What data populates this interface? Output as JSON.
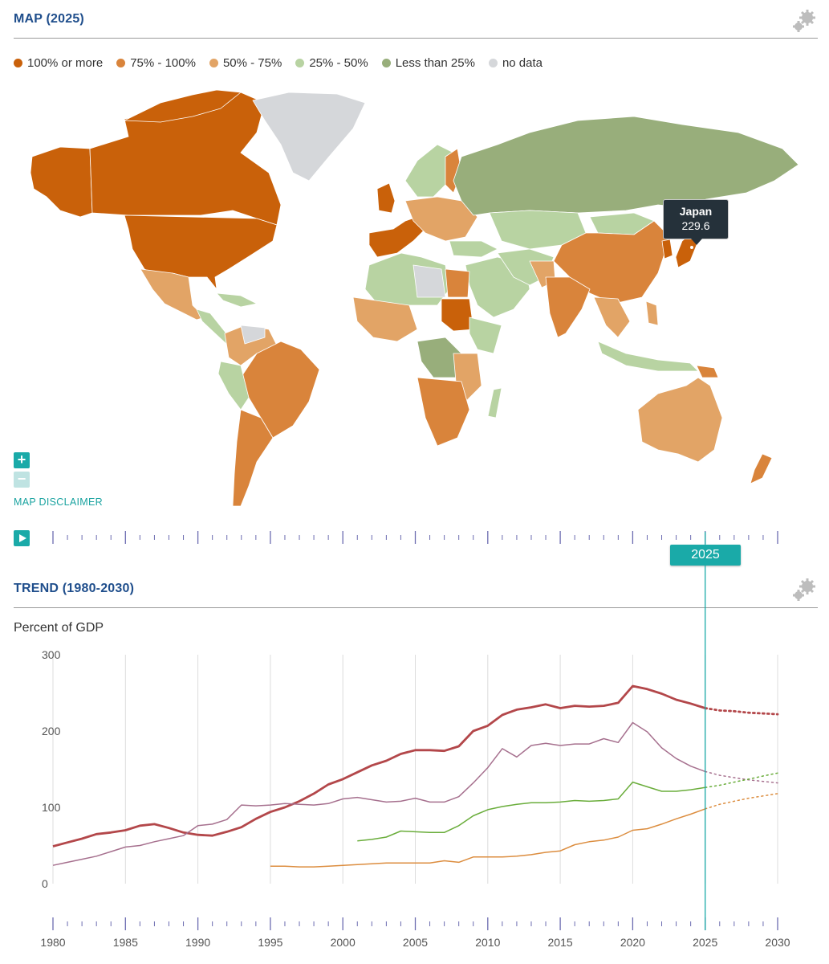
{
  "map_section": {
    "title": "MAP (2025)"
  },
  "legend": [
    {
      "label": "100% or more",
      "color": "#c9610a"
    },
    {
      "label": "75% - 100%",
      "color": "#d9843b"
    },
    {
      "label": "50% - 75%",
      "color": "#e2a466"
    },
    {
      "label": "25% - 50%",
      "color": "#b8d3a2"
    },
    {
      "label": "Less than 25%",
      "color": "#98ae7b"
    },
    {
      "label": "no data",
      "color": "#d5d7da"
    }
  ],
  "map_colors": {
    "high": "#c9610a",
    "upper": "#d9843b",
    "mid": "#e2a466",
    "low": "#b8d3a2",
    "lowest": "#98ae7b",
    "nodata": "#d5d7da"
  },
  "tooltip": {
    "country": "Japan",
    "value": "229.6"
  },
  "map_controls": {
    "zoom_in": "+",
    "zoom_out": "−",
    "disclaimer": "MAP DISCLAIMER"
  },
  "timeline": {
    "selected_year": "2025"
  },
  "trend_section": {
    "title": "TREND (1980-2030)",
    "ylabel": "Percent of GDP"
  },
  "accent_color": "#1aaaa8",
  "chart_data": {
    "type": "line",
    "ylabel": "Percent of GDP",
    "xlim": [
      1980,
      2030
    ],
    "ylim": [
      0,
      300
    ],
    "yticks": [
      0,
      100,
      200,
      300
    ],
    "xticks": [
      1980,
      1985,
      1990,
      1995,
      2000,
      2005,
      2010,
      2015,
      2020,
      2025,
      2030
    ],
    "grid": true,
    "projection_start": 2025,
    "series": [
      {
        "color": "#b3474a",
        "width": 2.8,
        "x": [
          1980,
          1981,
          1982,
          1983,
          1984,
          1985,
          1986,
          1987,
          1988,
          1989,
          1990,
          1991,
          1992,
          1993,
          1994,
          1995,
          1996,
          1997,
          1998,
          1999,
          2000,
          2001,
          2002,
          2003,
          2004,
          2005,
          2006,
          2007,
          2008,
          2009,
          2010,
          2011,
          2012,
          2013,
          2014,
          2015,
          2016,
          2017,
          2018,
          2019,
          2020,
          2021,
          2022,
          2023,
          2024,
          2025,
          2026,
          2027,
          2028,
          2029,
          2030
        ],
        "y": [
          49,
          54,
          59,
          65,
          67,
          70,
          76,
          78,
          73,
          67,
          64,
          63,
          68,
          74,
          85,
          94,
          100,
          108,
          118,
          130,
          137,
          146,
          155,
          161,
          170,
          175,
          175,
          174,
          180,
          200,
          207,
          221,
          228,
          231,
          235,
          230,
          233,
          232,
          233,
          237,
          259,
          255,
          249,
          241,
          236,
          230,
          227,
          226,
          224,
          223,
          222
        ]
      },
      {
        "color": "#a6708e",
        "width": 1.5,
        "x": [
          1980,
          1981,
          1982,
          1983,
          1984,
          1985,
          1986,
          1987,
          1988,
          1989,
          1990,
          1991,
          1992,
          1993,
          1994,
          1995,
          1996,
          1997,
          1998,
          1999,
          2000,
          2001,
          2002,
          2003,
          2004,
          2005,
          2006,
          2007,
          2008,
          2009,
          2010,
          2011,
          2012,
          2013,
          2014,
          2015,
          2016,
          2017,
          2018,
          2019,
          2020,
          2021,
          2022,
          2023,
          2024,
          2025,
          2026,
          2027,
          2028,
          2029,
          2030
        ],
        "y": [
          24,
          28,
          32,
          36,
          42,
          48,
          50,
          55,
          59,
          63,
          76,
          78,
          84,
          103,
          102,
          103,
          105,
          104,
          103,
          105,
          111,
          113,
          110,
          107,
          108,
          112,
          107,
          107,
          114,
          132,
          152,
          177,
          166,
          181,
          184,
          181,
          183,
          183,
          190,
          185,
          211,
          199,
          178,
          164,
          154,
          147,
          142,
          139,
          136,
          134,
          132
        ]
      },
      {
        "color": "#6aad3b",
        "width": 1.5,
        "x": [
          2001,
          2002,
          2003,
          2004,
          2005,
          2006,
          2007,
          2008,
          2009,
          2010,
          2011,
          2012,
          2013,
          2014,
          2015,
          2016,
          2017,
          2018,
          2019,
          2020,
          2021,
          2022,
          2023,
          2024,
          2025,
          2026,
          2027,
          2028,
          2029,
          2030
        ],
        "y": [
          56,
          58,
          61,
          69,
          68,
          67,
          67,
          76,
          89,
          97,
          101,
          104,
          106,
          106,
          107,
          109,
          108,
          109,
          111,
          133,
          127,
          121,
          121,
          123,
          126,
          129,
          133,
          137,
          141,
          145
        ]
      },
      {
        "color": "#dc8d3f",
        "width": 1.5,
        "x": [
          1995,
          1996,
          1997,
          1998,
          1999,
          2000,
          2001,
          2002,
          2003,
          2004,
          2005,
          2006,
          2007,
          2008,
          2009,
          2010,
          2011,
          2012,
          2013,
          2014,
          2015,
          2016,
          2017,
          2018,
          2019,
          2020,
          2021,
          2022,
          2023,
          2024,
          2025,
          2026,
          2027,
          2028,
          2029,
          2030
        ],
        "y": [
          23,
          23,
          22,
          22,
          23,
          24,
          25,
          26,
          27,
          27,
          27,
          27,
          30,
          28,
          35,
          35,
          35,
          36,
          38,
          41,
          43,
          51,
          55,
          57,
          61,
          70,
          72,
          78,
          85,
          91,
          98,
          104,
          108,
          112,
          115,
          118
        ]
      }
    ]
  }
}
